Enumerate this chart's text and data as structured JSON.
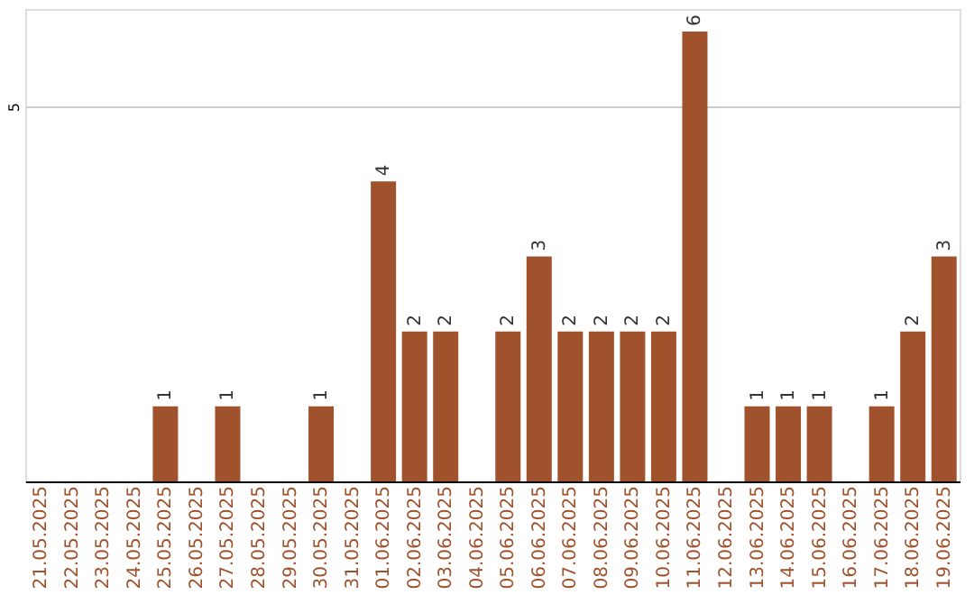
{
  "chart_data": {
    "type": "bar",
    "categories": [
      "21.05.2025",
      "22.05.2025",
      "23.05.2025",
      "24.05.2025",
      "25.05.2025",
      "26.05.2025",
      "27.05.2025",
      "28.05.2025",
      "29.05.2025",
      "30.05.2025",
      "31.05.2025",
      "01.06.2025",
      "02.06.2025",
      "03.06.2025",
      "04.06.2025",
      "05.06.2025",
      "06.06.2025",
      "07.06.2025",
      "08.06.2025",
      "09.06.2025",
      "10.06.2025",
      "11.06.2025",
      "12.06.2025",
      "13.06.2025",
      "14.06.2025",
      "15.06.2025",
      "16.06.2025",
      "17.06.2025",
      "18.06.2025",
      "19.06.2025"
    ],
    "values": [
      0,
      0,
      0,
      0,
      1,
      0,
      1,
      0,
      0,
      1,
      0,
      4,
      2,
      2,
      0,
      2,
      3,
      2,
      2,
      2,
      2,
      6,
      0,
      1,
      1,
      1,
      0,
      1,
      2,
      3
    ],
    "value_labels": [
      null,
      null,
      null,
      null,
      "1",
      null,
      "1",
      null,
      null,
      "1",
      null,
      "4",
      "2",
      "2",
      null,
      "2",
      "3",
      "2",
      "2",
      "2",
      "2",
      "6",
      null,
      "1",
      "1",
      "1",
      null,
      "1",
      "2",
      "3"
    ],
    "color": "#a0522d",
    "ylim": [
      0,
      6.3
    ],
    "yticks": [
      5
    ],
    "grid": "y"
  }
}
